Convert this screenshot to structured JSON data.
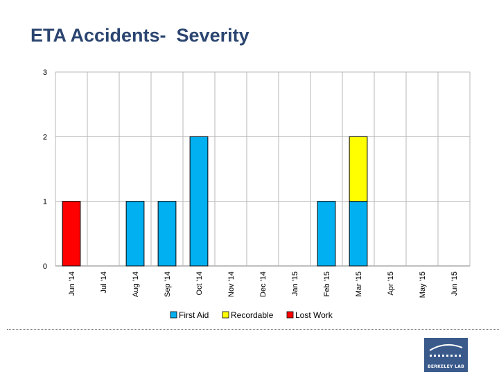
{
  "slide": {
    "title": "ETA Accidents-  Severity"
  },
  "logo": {
    "text": "BERKELEY LAB"
  },
  "colors": {
    "first_aid": "#00b0f0",
    "recordable": "#ffff00",
    "lost_work": "#ff0000",
    "grid": "#b7b7b7",
    "title": "#2b4570"
  },
  "chart_data": {
    "type": "bar",
    "stacked": true,
    "title": "",
    "xlabel": "",
    "ylabel": "",
    "ylim": [
      0,
      3
    ],
    "yticks": [
      0,
      1,
      2,
      3
    ],
    "grid": true,
    "legend_position": "bottom",
    "categories": [
      "Jun '14",
      "Jul '14",
      "Aug '14",
      "Sep '14",
      "Oct '14",
      "Nov '14",
      "Dec '14",
      "Jan '15",
      "Feb '15",
      "Mar '15",
      "Apr '15",
      "May '15",
      "Jun '15"
    ],
    "series": [
      {
        "name": "First Aid",
        "color": "#00b0f0",
        "values": [
          0,
          0,
          1,
          1,
          2,
          0,
          0,
          0,
          1,
          1,
          0,
          0,
          0
        ]
      },
      {
        "name": "Recordable",
        "color": "#ffff00",
        "values": [
          0,
          0,
          0,
          0,
          0,
          0,
          0,
          0,
          0,
          1,
          0,
          0,
          0
        ]
      },
      {
        "name": "Lost Work",
        "color": "#ff0000",
        "values": [
          1,
          0,
          0,
          0,
          0,
          0,
          0,
          0,
          0,
          0,
          0,
          0,
          0
        ]
      }
    ]
  }
}
